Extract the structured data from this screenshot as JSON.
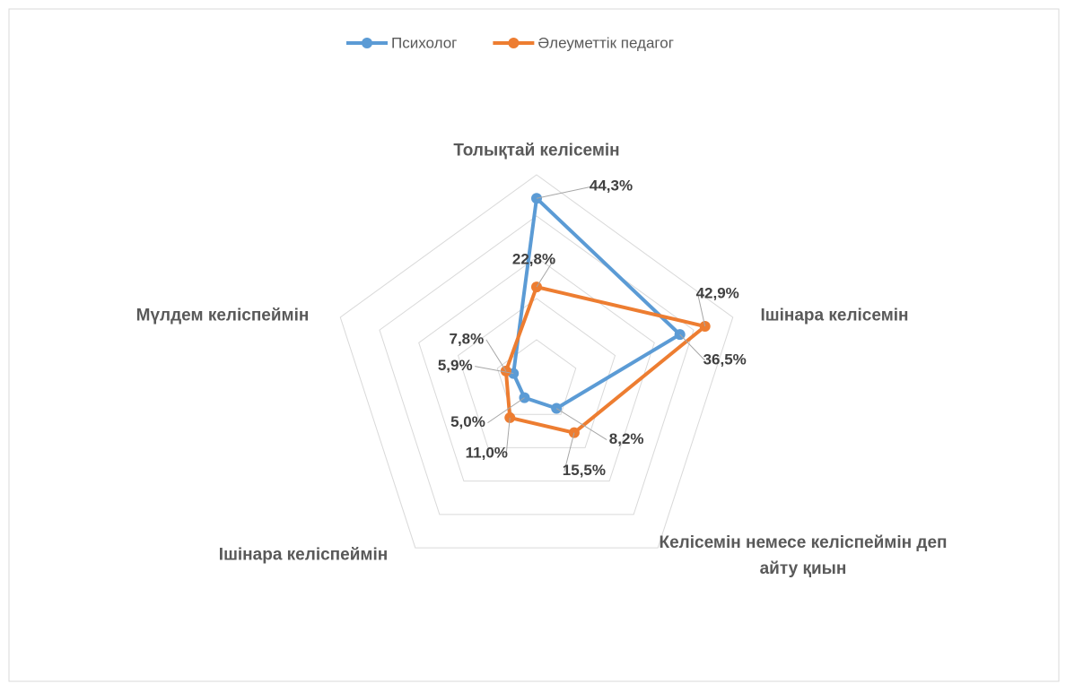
{
  "chart_data": {
    "type": "radar",
    "categories": [
      "Толықтай келісемін",
      "Ішінара келісемін",
      "Келісемін немесе келіспеймін деп айту қиын",
      "Ішінара келіспеймін",
      "Мүлдем келіспеймін"
    ],
    "series": [
      {
        "name": "Психолог",
        "color": "#5b9bd5",
        "values": [
          44.3,
          36.5,
          8.2,
          5.0,
          5.9
        ],
        "value_labels": [
          "44,3%",
          "36,5%",
          "8,2%",
          "5,0%",
          "5,9%"
        ]
      },
      {
        "name": "Әлеуметтік педагог",
        "color": "#ed7d31",
        "values": [
          22.8,
          42.9,
          15.5,
          11.0,
          7.8
        ],
        "value_labels": [
          "22,8%",
          "42,9%",
          "15,5%",
          "11,0%",
          "7,8%"
        ]
      }
    ],
    "ylim": [
      0,
      50
    ],
    "yticks": [
      0,
      10,
      20,
      30,
      40,
      50
    ],
    "grid": true,
    "legend": "top"
  }
}
